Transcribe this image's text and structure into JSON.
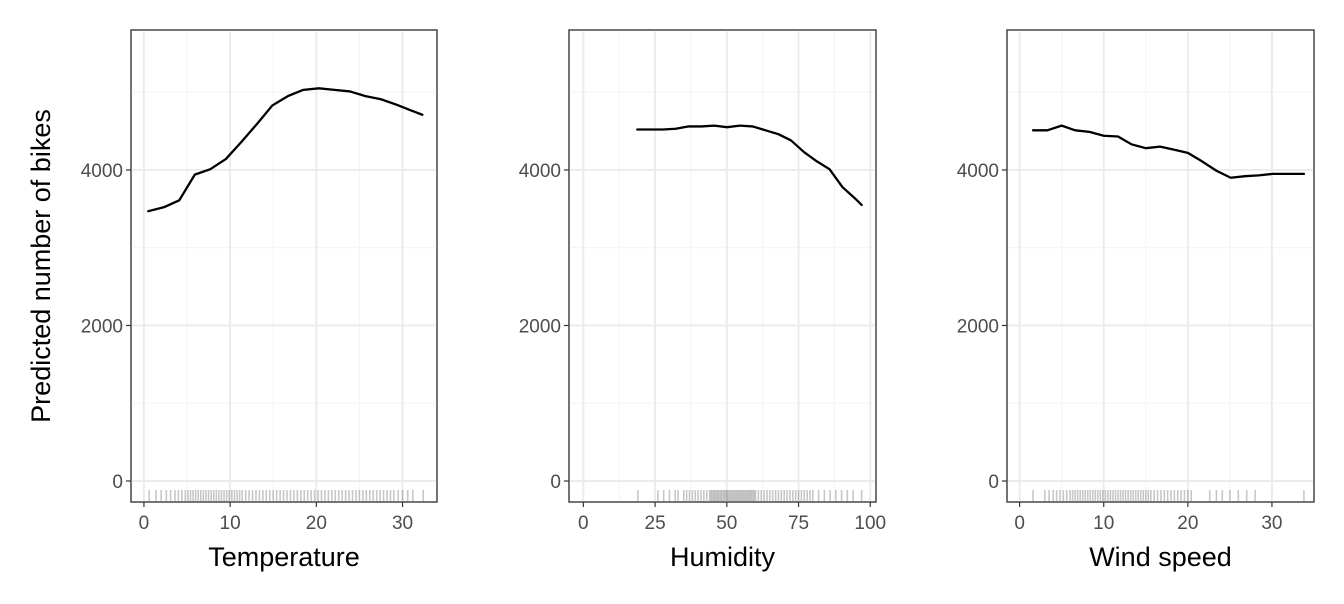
{
  "figure": {
    "ylabel": "Predicted number of bikes"
  },
  "chart_data": [
    {
      "type": "line",
      "xlabel": "Temperature",
      "ylabel": "Predicted number of bikes",
      "xlim": [
        -1.5,
        34
      ],
      "ylim": [
        -270,
        5800
      ],
      "xticks": [
        0,
        10,
        20,
        30
      ],
      "xminor": [
        5,
        15,
        25
      ],
      "yticks": [
        0,
        2000,
        4000
      ],
      "yminor": [
        1000,
        3000,
        5000
      ],
      "grid": true,
      "series": [
        {
          "x": [
            0.5,
            2.3,
            4.1,
            5.9,
            7.7,
            9.5,
            11.3,
            13.1,
            14.9,
            16.7,
            18.5,
            20.3,
            22.1,
            23.9,
            25.7,
            27.5,
            29.3,
            31.1,
            32.3
          ],
          "y": [
            3470,
            3520,
            3610,
            3940,
            4010,
            4140,
            4360,
            4590,
            4830,
            4950,
            5030,
            5050,
            5030,
            5010,
            4950,
            4910,
            4840,
            4760,
            4710
          ]
        }
      ],
      "rug": [
        0.6,
        1.4,
        2.0,
        2.6,
        3.1,
        3.6,
        4.0,
        4.4,
        4.8,
        5.1,
        5.4,
        5.7,
        6.0,
        6.3,
        6.6,
        6.9,
        7.2,
        7.5,
        7.8,
        8.1,
        8.4,
        8.7,
        9.0,
        9.3,
        9.6,
        9.9,
        10.2,
        10.5,
        10.8,
        11.1,
        11.4,
        11.8,
        12.2,
        12.6,
        13.0,
        13.4,
        13.8,
        14.2,
        14.6,
        15.0,
        15.4,
        15.8,
        16.2,
        16.6,
        17.0,
        17.4,
        17.8,
        18.2,
        18.6,
        19.0,
        19.4,
        19.8,
        20.2,
        20.6,
        21.0,
        21.4,
        21.8,
        22.2,
        22.6,
        23.0,
        23.4,
        23.8,
        24.2,
        24.6,
        25.0,
        25.4,
        25.8,
        26.2,
        26.6,
        27.0,
        27.4,
        27.8,
        28.2,
        28.6,
        29.0,
        29.5,
        30.0,
        30.6,
        31.2,
        32.4
      ]
    },
    {
      "type": "line",
      "xlabel": "Humidity",
      "xlim": [
        -5,
        102
      ],
      "ylim": [
        -270,
        5800
      ],
      "xticks": [
        0,
        25,
        50,
        75,
        100
      ],
      "xminor": [
        12.5,
        37.5,
        62.5,
        87.5
      ],
      "yticks": [
        0,
        2000,
        4000
      ],
      "yminor": [
        1000,
        3000,
        5000
      ],
      "grid": true,
      "series": [
        {
          "x": [
            18.8,
            23.3,
            27.8,
            32.2,
            36.7,
            41.2,
            45.6,
            50.1,
            54.6,
            59.0,
            63.5,
            68.0,
            72.4,
            76.9,
            81.4,
            85.8,
            90.3,
            94.8,
            97.0
          ],
          "y": [
            4520,
            4520,
            4520,
            4530,
            4560,
            4560,
            4570,
            4550,
            4570,
            4560,
            4510,
            4460,
            4380,
            4230,
            4110,
            4010,
            3780,
            3630,
            3550
          ]
        }
      ],
      "rug": [
        19,
        26,
        28,
        30,
        32,
        33,
        35,
        36,
        37,
        38,
        39,
        40,
        41,
        42,
        43,
        44,
        44.5,
        45,
        45.5,
        46,
        46.5,
        47,
        47.5,
        48,
        48.5,
        49,
        49.5,
        50,
        50.5,
        51,
        51.5,
        52,
        52.5,
        53,
        53.5,
        54,
        54.5,
        55,
        55.5,
        56,
        56.5,
        57,
        57.5,
        58,
        58.5,
        59,
        59.5,
        60,
        61,
        62,
        63,
        64,
        65,
        66,
        67,
        68,
        69,
        70,
        71,
        72,
        73,
        74,
        75,
        76,
        77,
        78,
        79,
        80,
        82,
        84,
        86,
        88,
        90,
        92,
        94,
        97
      ]
    },
    {
      "type": "line",
      "xlabel": "Wind speed",
      "xlim": [
        -1.5,
        35
      ],
      "ylim": [
        -270,
        5800
      ],
      "xticks": [
        0,
        10,
        20,
        30
      ],
      "xminor": [
        5,
        15,
        25
      ],
      "yticks": [
        0,
        2000,
        4000
      ],
      "yminor": [
        1000,
        3000,
        5000
      ],
      "grid": true,
      "series": [
        {
          "x": [
            1.6,
            3.3,
            5.0,
            6.6,
            8.3,
            10.0,
            11.7,
            13.3,
            15.0,
            16.7,
            18.4,
            20.0,
            21.7,
            23.4,
            25.1,
            26.8,
            28.4,
            30.1,
            33.8
          ],
          "y": [
            4510,
            4510,
            4570,
            4510,
            4490,
            4440,
            4430,
            4330,
            4280,
            4300,
            4260,
            4220,
            4110,
            3990,
            3900,
            3920,
            3930,
            3950,
            3950
          ]
        }
      ],
      "rug": [
        1.6,
        3.0,
        3.5,
        4.0,
        4.4,
        4.8,
        5.2,
        5.6,
        6.0,
        6.3,
        6.6,
        6.9,
        7.2,
        7.5,
        7.8,
        8.1,
        8.4,
        8.7,
        9.0,
        9.3,
        9.6,
        9.9,
        10.2,
        10.5,
        10.8,
        11.1,
        11.4,
        11.7,
        12.0,
        12.3,
        12.6,
        12.9,
        13.2,
        13.5,
        13.8,
        14.1,
        14.4,
        14.7,
        15.0,
        15.3,
        15.6,
        16.0,
        16.4,
        16.8,
        17.2,
        17.6,
        18.0,
        18.4,
        18.8,
        19.2,
        19.6,
        20.0,
        20.4,
        22.6,
        23.4,
        24.1,
        25.0,
        26.0,
        27.0,
        28.0,
        33.8
      ]
    }
  ]
}
